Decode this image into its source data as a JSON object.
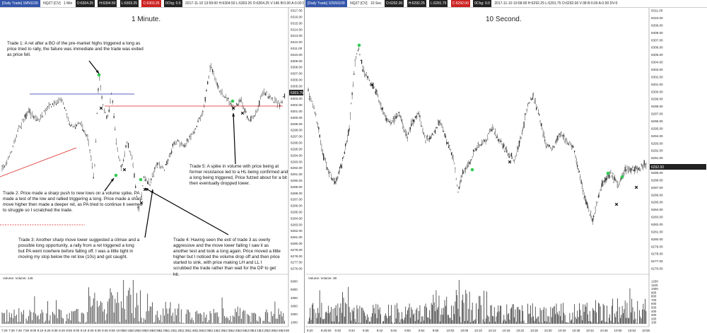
{
  "left": {
    "header": {
      "instrument_tag": "[Daily Trade] 1MN1109",
      "symbol": "NQZ7 [CV]",
      "interval": "1 Min",
      "open": "O:6304.25",
      "high": "H:6304.50",
      "low": "L:6303.25",
      "close": "C:6303.25",
      "change": "0Chg: 0.5",
      "info": "2017-11-10 13:59:00 H:6304.50 L:6303.25 O:6304.25 V:146 B:0.00 A:0.00 DV:0 Clock - RealTime (20,90,No,No,No,No)"
    },
    "title": "1 Minute.",
    "price_axis": [
      "6317.00",
      "6316.00",
      "6315.00",
      "6314.00",
      "6313.00",
      "6312.00",
      "6311.00",
      "6310.00",
      "6309.00",
      "6308.00",
      "6307.00",
      "6306.00",
      "6305.00",
      "6304.00",
      "6303.00",
      "6302.00",
      "6301.00",
      "6300.00",
      "6299.00",
      "6298.00",
      "6297.00",
      "6296.00",
      "6295.00",
      "6294.00",
      "6293.00",
      "6292.00",
      "6291.00",
      "6290.00",
      "6289.00",
      "6288.00",
      "6287.00",
      "6286.00",
      "6285.00",
      "6284.00",
      "6283.00",
      "6282.00",
      "6281.00",
      "6280.00",
      "6279.00",
      "6278.00",
      "6277.00",
      "6276.00"
    ],
    "last_price": "6303.75",
    "volume_label": "Volume: Volume: 146",
    "volume_axis": [
      "6000",
      "5000",
      "4000",
      "3000",
      "2000",
      "1000"
    ],
    "time_axis": [
      "7:29",
      "7:39",
      "7:49",
      "7:59",
      "8:09",
      "8:19",
      "8:29",
      "8:39",
      "8:49",
      "8:59",
      "9:09",
      "9:19",
      "9:29",
      "9:39",
      "9:49",
      "9:59",
      "10:09",
      "10:19",
      "10:29",
      "10:39",
      "10:49",
      "10:59",
      "11:09",
      "11:19",
      "11:29",
      "11:39",
      "11:49",
      "11:59",
      "12:09",
      "12:19",
      "12:29",
      "12:39",
      "12:49",
      "12:59",
      "13:09",
      "13:19",
      "13:29",
      "13:39",
      "13:49",
      "13:59"
    ],
    "notes": {
      "trade1": "Trade 1:  A ret after a BO of the pre-market highs triggered a long as price tried to rally, the failure was immediate and the trade was exited as price fell.",
      "trade2": "Trade 2:  Price made a sharp push to new lows on a volume spike, PA made a test of the low and rallied triggering a long.  Price made a sharp move higher then made a deeper ret, as PA tried to continue it seemed to struggle so I scratched the trade.",
      "trade3": "Trade 3:  Another sharp move lower suggested a climax and a possible long opportunity, a rally from a ret triggered a long but PA went nowhere before falling off.  I was a little tight in moving my stop below the ret low (10s) and got caught.",
      "trade4": "Trade 4:  Having seen the exit of trade 3 as overly aggressive and the move lower failing I saw it as another test and took a long again.  Price moved a little higher but I noticed the volume drop off and then price started to sink, with price making LH and LL I scrubbed the trade rather than wait for the DP to get hit.",
      "trade5": "Trade 5:  A spike in volume with price being at former resistance led to a HL being confirmed and a long being triggered, Price futzed about for a bit then eventually dropped lower."
    }
  },
  "right": {
    "header": {
      "instrument_tag": "[Daily Trade] 10SN1109",
      "symbol": "NQZ7 [CV]",
      "interval": "10 Sec",
      "open": "O:6292.00",
      "high": "H:6292.25",
      "low": "L:6291.75",
      "close": "C:6292.00",
      "change": "0Chg: 0.0",
      "info": "2017-11-10 10:58:00 H:6292.25 L:6291.75 O:6292.00 V:38 B:0.00 A:0.00 DV:0"
    },
    "title": "10 Second.",
    "price_axis": [
      "6311.00",
      "6310.00",
      "6309.00",
      "6308.00",
      "6307.00",
      "6306.00",
      "6305.00",
      "6304.00",
      "6303.00",
      "6302.00",
      "6301.00",
      "6300.00",
      "6299.00",
      "6298.00",
      "6297.00",
      "6296.00",
      "6295.00",
      "6294.00",
      "6293.00",
      "6292.00",
      "6291.00",
      "6290.00",
      "6289.00",
      "6288.00",
      "6287.00",
      "6286.00",
      "6285.00",
      "6284.00",
      "6283.00",
      "6282.00",
      "6281.00",
      "6280.00",
      "6279.00",
      "6278.00",
      "6277.00",
      "6276.00"
    ],
    "last_price": "6292.00",
    "volume_label": "Volume: Volume: 38",
    "volume_axis": [
      "1200",
      "1100",
      "1000",
      "900",
      "800",
      "700",
      "600",
      "500",
      "400",
      "300",
      "200",
      "100"
    ],
    "time_axis": [
      "9:20",
      "9:25:50",
      "9:30",
      "9:34",
      "9:38",
      "9:42",
      "9:46",
      "9:50",
      "9:54",
      "9:58",
      "10:02",
      "10:06",
      "10:10",
      "10:14",
      "10:18",
      "10:22",
      "10:26",
      "10:30",
      "10:34",
      "10:38",
      "10:42",
      "10:46",
      "10:50",
      "10:54",
      "10:58"
    ]
  },
  "colors": {
    "green_marker": "#33cc55",
    "x_marker": "#111111",
    "blue_line": "#2233aa",
    "red_line": "#dd2222",
    "candle": "#222222"
  }
}
